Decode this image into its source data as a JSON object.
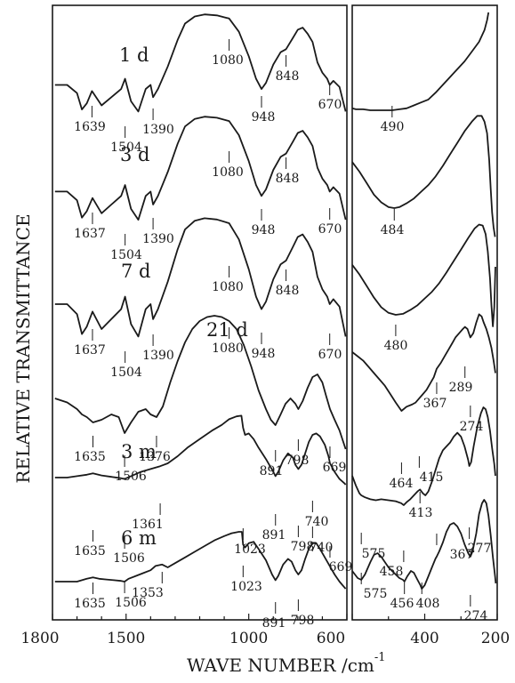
{
  "chart_data": {
    "type": "line",
    "ylabel": "RELATIVE TRANSMITTANCE",
    "xlabel": "WAVE NUMBER /cm",
    "xlabel_exponent": "-1",
    "xlim_left_panel": [
      1800,
      600
    ],
    "xlim_right_panel": [
      600,
      200
    ],
    "x_ticks_left": [
      "1800",
      "1500",
      "1000",
      "600"
    ],
    "x_ticks_right": [
      "400",
      "200"
    ],
    "series": [
      {
        "name": "1 d",
        "left_x": [
          1790,
          1740,
          1700,
          1680,
          1660,
          1639,
          1600,
          1560,
          1520,
          1504,
          1480,
          1450,
          1420,
          1400,
          1390,
          1370,
          1330,
          1290,
          1260,
          1220,
          1180,
          1130,
          1080,
          1040,
          1000,
          970,
          948,
          930,
          900,
          870,
          848,
          820,
          800,
          780,
          760,
          740,
          720,
          700,
          680,
          670,
          655,
          630,
          605
        ],
        "left_y": [
          0.3,
          0.3,
          0.22,
          0.06,
          0.12,
          0.24,
          0.1,
          0.18,
          0.26,
          0.36,
          0.14,
          0.04,
          0.26,
          0.3,
          0.18,
          0.26,
          0.48,
          0.74,
          0.9,
          0.97,
          0.99,
          0.98,
          0.95,
          0.82,
          0.58,
          0.36,
          0.26,
          0.32,
          0.5,
          0.62,
          0.65,
          0.76,
          0.84,
          0.86,
          0.8,
          0.72,
          0.52,
          0.42,
          0.36,
          0.3,
          0.34,
          0.28,
          0.04
        ],
        "right_x": [
          600,
          590,
          570,
          550,
          530,
          510,
          490,
          470,
          450,
          430,
          410,
          390,
          370,
          350,
          330,
          310,
          290,
          270,
          250,
          235,
          228,
          224
        ],
        "right_y": [
          0.02,
          0.01,
          0.01,
          0.0,
          0.0,
          0.0,
          0.0,
          0.01,
          0.02,
          0.05,
          0.08,
          0.11,
          0.18,
          0.26,
          0.34,
          0.42,
          0.5,
          0.6,
          0.7,
          0.82,
          0.92,
          1.0
        ],
        "annotations": [
          "1639",
          "1504",
          "1390",
          "1080",
          "948",
          "848",
          "670",
          "490"
        ]
      },
      {
        "name": "3 d",
        "left_x": [
          1790,
          1740,
          1700,
          1680,
          1660,
          1637,
          1600,
          1560,
          1520,
          1504,
          1480,
          1450,
          1420,
          1400,
          1390,
          1370,
          1330,
          1290,
          1260,
          1220,
          1180,
          1130,
          1080,
          1040,
          1000,
          970,
          948,
          930,
          900,
          870,
          848,
          820,
          800,
          780,
          760,
          740,
          720,
          700,
          680,
          670,
          655,
          630,
          605
        ],
        "left_y": [
          0.3,
          0.3,
          0.22,
          0.06,
          0.12,
          0.24,
          0.1,
          0.18,
          0.26,
          0.36,
          0.14,
          0.04,
          0.26,
          0.3,
          0.18,
          0.26,
          0.48,
          0.74,
          0.9,
          0.97,
          0.99,
          0.98,
          0.95,
          0.82,
          0.58,
          0.36,
          0.26,
          0.32,
          0.5,
          0.62,
          0.65,
          0.76,
          0.84,
          0.86,
          0.8,
          0.72,
          0.52,
          0.42,
          0.36,
          0.3,
          0.34,
          0.28,
          0.04
        ],
        "right_x": [
          600,
          580,
          560,
          540,
          520,
          500,
          484,
          470,
          450,
          430,
          410,
          390,
          370,
          350,
          330,
          310,
          290,
          270,
          255,
          243,
          235,
          228,
          222,
          218,
          214,
          210,
          206
        ],
        "right_y": [
          0.48,
          0.38,
          0.26,
          0.14,
          0.06,
          0.01,
          0.0,
          0.01,
          0.05,
          0.1,
          0.17,
          0.24,
          0.33,
          0.44,
          0.56,
          0.68,
          0.8,
          0.9,
          0.96,
          0.96,
          0.9,
          0.78,
          0.5,
          0.2,
          -0.05,
          -0.2,
          -0.3
        ],
        "annotations": [
          "1637",
          "1504",
          "1390",
          "1080",
          "948",
          "848",
          "670",
          "484"
        ]
      },
      {
        "name": "7 d",
        "left_x": [
          1790,
          1740,
          1700,
          1680,
          1660,
          1637,
          1600,
          1560,
          1520,
          1504,
          1480,
          1450,
          1420,
          1400,
          1390,
          1370,
          1330,
          1290,
          1260,
          1220,
          1180,
          1130,
          1080,
          1040,
          1000,
          970,
          948,
          930,
          900,
          870,
          848,
          820,
          800,
          780,
          760,
          740,
          720,
          700,
          680,
          670,
          655,
          630,
          605
        ],
        "left_y": [
          0.3,
          0.3,
          0.22,
          0.06,
          0.12,
          0.24,
          0.1,
          0.18,
          0.26,
          0.36,
          0.14,
          0.04,
          0.26,
          0.3,
          0.18,
          0.26,
          0.48,
          0.74,
          0.9,
          0.97,
          0.99,
          0.98,
          0.95,
          0.82,
          0.58,
          0.36,
          0.26,
          0.32,
          0.5,
          0.62,
          0.65,
          0.76,
          0.84,
          0.86,
          0.8,
          0.72,
          0.52,
          0.42,
          0.36,
          0.3,
          0.34,
          0.28,
          0.04
        ],
        "right_x": [
          600,
          580,
          560,
          540,
          520,
          500,
          480,
          460,
          440,
          420,
          400,
          380,
          360,
          340,
          320,
          300,
          280,
          262,
          250,
          240,
          232,
          226,
          220,
          216,
          212,
          208,
          205
        ],
        "right_y": [
          0.52,
          0.42,
          0.3,
          0.18,
          0.08,
          0.02,
          0.0,
          0.01,
          0.05,
          0.1,
          0.17,
          0.24,
          0.33,
          0.44,
          0.56,
          0.68,
          0.8,
          0.9,
          0.94,
          0.93,
          0.84,
          0.66,
          0.38,
          0.1,
          -0.12,
          0.08,
          0.5
        ],
        "annotations": [
          "1637",
          "1504",
          "1390",
          "1080",
          "948",
          "848",
          "670",
          "480"
        ]
      },
      {
        "name": "21 d",
        "left_x": [
          1790,
          1740,
          1700,
          1680,
          1660,
          1635,
          1600,
          1560,
          1530,
          1506,
          1480,
          1450,
          1420,
          1400,
          1376,
          1350,
          1320,
          1290,
          1260,
          1230,
          1200,
          1170,
          1140,
          1110,
          1080,
          1050,
          1020,
          990,
          960,
          930,
          910,
          891,
          870,
          850,
          830,
          810,
          798,
          780,
          760,
          740,
          720,
          700,
          685,
          669,
          650,
          630,
          605
        ],
        "left_y": [
          0.38,
          0.35,
          0.3,
          0.26,
          0.24,
          0.2,
          0.22,
          0.26,
          0.24,
          0.12,
          0.2,
          0.28,
          0.3,
          0.26,
          0.24,
          0.32,
          0.5,
          0.66,
          0.8,
          0.9,
          0.96,
          0.99,
          1.0,
          0.99,
          0.96,
          0.9,
          0.78,
          0.62,
          0.44,
          0.3,
          0.22,
          0.18,
          0.26,
          0.34,
          0.38,
          0.34,
          0.3,
          0.36,
          0.46,
          0.54,
          0.56,
          0.5,
          0.4,
          0.3,
          0.22,
          0.14,
          0.0
        ],
        "right_x": [
          600,
          585,
          570,
          555,
          540,
          525,
          510,
          495,
          480,
          464,
          450,
          435,
          425,
          415,
          405,
          395,
          385,
          375,
          367,
          355,
          345,
          335,
          325,
          315,
          305,
          295,
          289,
          282,
          274,
          266,
          258,
          250,
          243,
          237,
          230,
          223,
          216,
          210,
          205
        ],
        "right_y": [
          0.56,
          0.52,
          0.48,
          0.42,
          0.36,
          0.3,
          0.24,
          0.16,
          0.08,
          0.0,
          0.04,
          0.06,
          0.08,
          0.12,
          0.16,
          0.2,
          0.26,
          0.32,
          0.4,
          0.46,
          0.52,
          0.58,
          0.64,
          0.7,
          0.74,
          0.78,
          0.8,
          0.78,
          0.7,
          0.74,
          0.84,
          0.92,
          0.9,
          0.84,
          0.78,
          0.7,
          0.6,
          0.48,
          0.36
        ],
        "annotations": [
          "1635",
          "1506",
          "1376",
          "1080",
          "891",
          "798",
          "669",
          "464",
          "415",
          "367",
          "289",
          "274"
        ]
      },
      {
        "name": "3 m",
        "left_x": [
          1790,
          1740,
          1700,
          1660,
          1635,
          1600,
          1560,
          1520,
          1506,
          1480,
          1440,
          1400,
          1361,
          1330,
          1290,
          1250,
          1200,
          1150,
          1110,
          1080,
          1050,
          1030,
          1023,
          1015,
          1000,
          980,
          960,
          930,
          900,
          891,
          880,
          860,
          840,
          820,
          810,
          798,
          785,
          770,
          755,
          740,
          725,
          710,
          690,
          675,
          669,
          650,
          630,
          610,
          605
        ],
        "left_y": [
          0.1,
          0.1,
          0.12,
          0.14,
          0.16,
          0.13,
          0.11,
          0.09,
          0.08,
          0.12,
          0.18,
          0.22,
          0.26,
          0.3,
          0.4,
          0.52,
          0.64,
          0.76,
          0.84,
          0.92,
          0.96,
          0.97,
          0.8,
          0.7,
          0.72,
          0.64,
          0.52,
          0.36,
          0.18,
          0.12,
          0.18,
          0.34,
          0.44,
          0.38,
          0.28,
          0.22,
          0.28,
          0.44,
          0.6,
          0.7,
          0.72,
          0.68,
          0.56,
          0.4,
          0.3,
          0.18,
          0.08,
          0.02,
          0.0
        ],
        "right_x": [
          600,
          590,
          580,
          575,
          565,
          550,
          535,
          520,
          500,
          480,
          465,
          458,
          450,
          440,
          430,
          420,
          413,
          405,
          398,
          390,
          380,
          370,
          360,
          350,
          340,
          330,
          320,
          310,
          300,
          290,
          280,
          277,
          272,
          265,
          255,
          245,
          238,
          232,
          226,
          220,
          214,
          208,
          205
        ],
        "right_y": [
          0.3,
          0.2,
          0.12,
          0.1,
          0.08,
          0.06,
          0.05,
          0.06,
          0.05,
          0.04,
          0.02,
          0.0,
          0.03,
          0.06,
          0.1,
          0.14,
          0.16,
          0.12,
          0.1,
          0.14,
          0.24,
          0.36,
          0.48,
          0.56,
          0.6,
          0.64,
          0.7,
          0.74,
          0.7,
          0.6,
          0.46,
          0.4,
          0.44,
          0.6,
          0.8,
          0.94,
          1.0,
          0.98,
          0.9,
          0.76,
          0.58,
          0.42,
          0.3
        ],
        "annotations": [
          "1635",
          "1506",
          "1361",
          "1023",
          "891",
          "798",
          "740",
          "669",
          "575",
          "458",
          "413",
          "277"
        ]
      },
      {
        "name": "6 m",
        "left_x": [
          1790,
          1760,
          1730,
          1700,
          1680,
          1660,
          1635,
          1610,
          1580,
          1550,
          1520,
          1506,
          1490,
          1460,
          1430,
          1400,
          1380,
          1353,
          1330,
          1300,
          1260,
          1220,
          1180,
          1140,
          1100,
          1070,
          1040,
          1028,
          1023,
          1015,
          1000,
          980,
          960,
          930,
          905,
          891,
          880,
          860,
          840,
          825,
          810,
          798,
          785,
          770,
          755,
          740,
          725,
          710,
          690,
          670,
          650,
          630,
          610,
          605
        ],
        "left_y": [
          0.1,
          0.1,
          0.1,
          0.1,
          0.12,
          0.14,
          0.16,
          0.14,
          0.13,
          0.12,
          0.11,
          0.1,
          0.14,
          0.18,
          0.22,
          0.26,
          0.32,
          0.34,
          0.3,
          0.36,
          0.44,
          0.52,
          0.6,
          0.68,
          0.74,
          0.78,
          0.8,
          0.8,
          0.62,
          0.58,
          0.64,
          0.66,
          0.56,
          0.4,
          0.2,
          0.12,
          0.18,
          0.34,
          0.42,
          0.38,
          0.26,
          0.2,
          0.26,
          0.42,
          0.56,
          0.64,
          0.64,
          0.56,
          0.44,
          0.32,
          0.2,
          0.1,
          0.02,
          0.0
        ],
        "right_x": [
          600,
          585,
          575,
          565,
          550,
          540,
          530,
          520,
          510,
          500,
          490,
          480,
          470,
          460,
          456,
          448,
          438,
          430,
          420,
          412,
          408,
          400,
          390,
          380,
          370,
          367,
          360,
          350,
          340,
          330,
          320,
          310,
          300,
          290,
          280,
          274,
          268,
          258,
          250,
          242,
          236,
          230,
          224,
          218,
          212,
          206,
          204
        ],
        "right_y": [
          0.2,
          0.12,
          0.1,
          0.16,
          0.3,
          0.38,
          0.4,
          0.36,
          0.3,
          0.24,
          0.2,
          0.16,
          0.12,
          0.1,
          0.08,
          0.14,
          0.2,
          0.18,
          0.1,
          0.04,
          0.0,
          0.04,
          0.14,
          0.24,
          0.34,
          0.36,
          0.42,
          0.52,
          0.64,
          0.72,
          0.74,
          0.7,
          0.62,
          0.5,
          0.4,
          0.36,
          0.42,
          0.62,
          0.84,
          0.96,
          1.0,
          0.96,
          0.82,
          0.6,
          0.36,
          0.14,
          0.06
        ],
        "annotations": [
          "1635",
          "1506",
          "1353",
          "1023",
          "891",
          "798",
          "740",
          "575",
          "456",
          "408",
          "367",
          "274"
        ]
      }
    ]
  }
}
